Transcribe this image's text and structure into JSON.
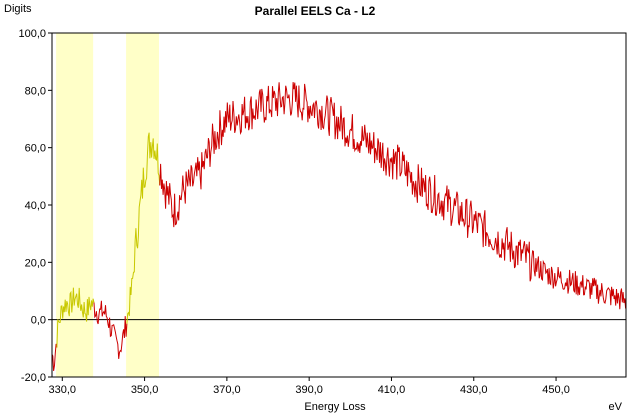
{
  "chart_data": {
    "type": "line",
    "title": "Parallel EELS Ca - L2",
    "xlabel": "Energy Loss",
    "ylabel": "Digits",
    "x_unit": "eV",
    "xlim": [
      327.5,
      467
    ],
    "ylim": [
      -20,
      100
    ],
    "x_ticks": [
      330,
      350,
      370,
      390,
      410,
      430,
      450
    ],
    "x_tick_labels": [
      "330,0",
      "350,0",
      "370,0",
      "390,0",
      "410,0",
      "430,0",
      "450,0"
    ],
    "y_ticks": [
      -20,
      0,
      20,
      40,
      60,
      80,
      100
    ],
    "y_tick_labels": [
      "-20,0",
      "0,0",
      "20,0",
      "40,0",
      "60,0",
      "80,0",
      "100,0"
    ],
    "grid": false,
    "zero_line": true,
    "highlight_windows": [
      {
        "x0": 328.5,
        "x1": 337.5
      },
      {
        "x0": 345.5,
        "x1": 353.5
      }
    ],
    "colors": {
      "spectrum": "#cc0000",
      "window_fill": "#ffffc8",
      "window_trace": "#c8c800",
      "axes": "#000000"
    },
    "series": [
      {
        "x": [
          327.5,
          328,
          329,
          330,
          331,
          332,
          333,
          334,
          335,
          336,
          337,
          338,
          339,
          340,
          341,
          342,
          343,
          344,
          345,
          346,
          347,
          348,
          349,
          350,
          351,
          352,
          353,
          354,
          355,
          356,
          357,
          358,
          359,
          360,
          362,
          364,
          366,
          368,
          370,
          372,
          374,
          376,
          378,
          380,
          382,
          384,
          386,
          388,
          390,
          392,
          394,
          396,
          398,
          400,
          402,
          404,
          406,
          408,
          410,
          412,
          414,
          416,
          418,
          420,
          422,
          424,
          426,
          428,
          430,
          432,
          434,
          436,
          438,
          440,
          442,
          444,
          446,
          448,
          450,
          452,
          454,
          456,
          458,
          460,
          462,
          464,
          466,
          467
        ],
        "y": [
          -12,
          -15,
          -2,
          4,
          6,
          5,
          8,
          7,
          4,
          3,
          6,
          4,
          2,
          3,
          1,
          -4,
          -8,
          -10,
          -5,
          2,
          12,
          28,
          40,
          52,
          60,
          64,
          58,
          52,
          46,
          42,
          38,
          40,
          44,
          46,
          48,
          52,
          60,
          66,
          70,
          71,
          72,
          73,
          74,
          75,
          76,
          77,
          77,
          76,
          75,
          74,
          72,
          70,
          68,
          66,
          64,
          62,
          60,
          58,
          56,
          54,
          51,
          48,
          46,
          44,
          42,
          40,
          38,
          36,
          34,
          32,
          30,
          28,
          26,
          24,
          22,
          20,
          18,
          16,
          15,
          14,
          13,
          12,
          11,
          10,
          9,
          8,
          7,
          6
        ]
      }
    ]
  }
}
